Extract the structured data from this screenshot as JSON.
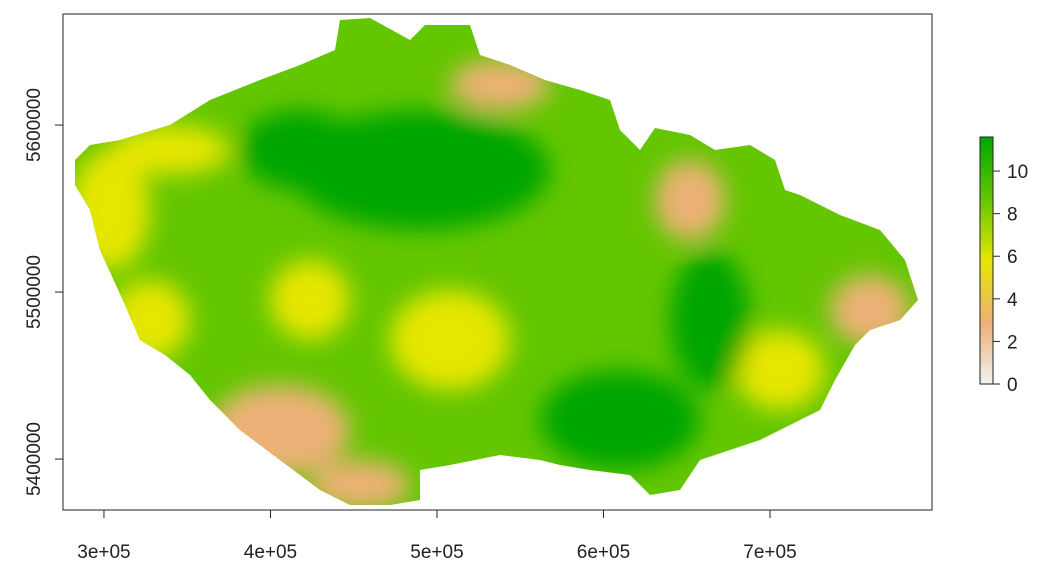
{
  "chart_data": {
    "type": "raster",
    "xlim": [
      275400,
      797300
    ],
    "ylim": [
      5369500,
      5666500
    ],
    "xticks": [
      {
        "value": 300000,
        "label": "3e+05"
      },
      {
        "value": 400000,
        "label": "4e+05"
      },
      {
        "value": 500000,
        "label": "5e+05"
      },
      {
        "value": 600000,
        "label": "6e+05"
      },
      {
        "value": 700000,
        "label": "7e+05"
      }
    ],
    "yticks": [
      5400000,
      5500000,
      5600000
    ],
    "zlim": [
      0,
      11.6
    ],
    "zticks": [
      0,
      2,
      4,
      6,
      8,
      10
    ],
    "colormap": [
      "#f2f2f2",
      "#ecb176",
      "#e6e600",
      "#63c600",
      "#00a600"
    ],
    "legend": "right"
  }
}
